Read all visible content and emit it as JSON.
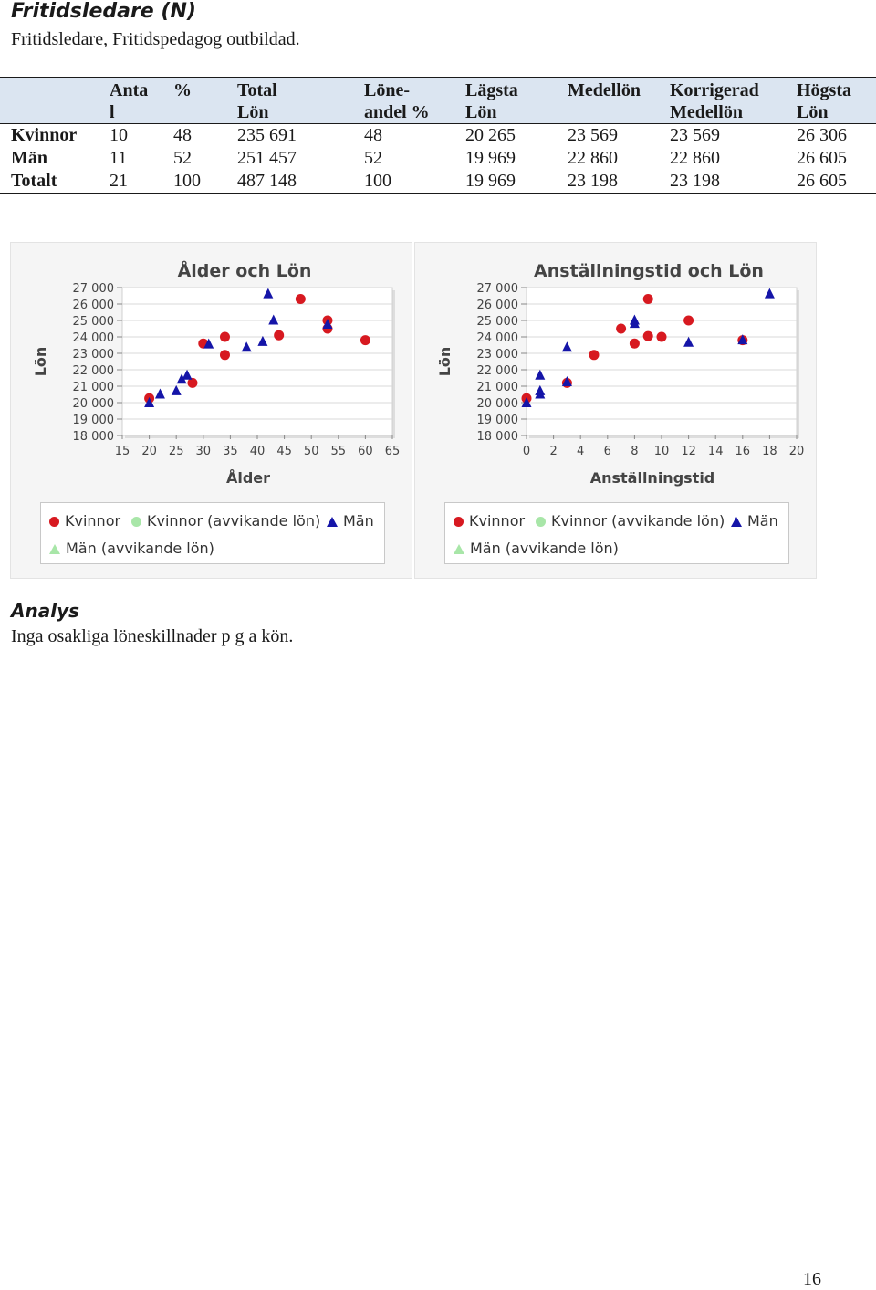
{
  "title": "Fritidsledare (N)",
  "subtitle": "Fritidsledare, Fritidspedagog outbildad.",
  "table": {
    "headers": [
      {
        "l1": "Anta",
        "l2": "l"
      },
      {
        "l1": "%",
        "l2": ""
      },
      {
        "l1": "Total",
        "l2": "Lön"
      },
      {
        "l1": "Löne-",
        "l2": "andel %"
      },
      {
        "l1": "Lägsta",
        "l2": "Lön"
      },
      {
        "l1": "Medellön",
        "l2": ""
      },
      {
        "l1": "Korrigerad",
        "l2": "Medellön"
      },
      {
        "l1": "Högsta",
        "l2": "Lön"
      }
    ],
    "rows": [
      {
        "label": "Kvinnor",
        "cells": [
          "10",
          "48",
          "235 691",
          "48",
          "20 265",
          "23 569",
          "23 569",
          "26 306"
        ]
      },
      {
        "label": "Män",
        "cells": [
          "11",
          "52",
          "251 457",
          "52",
          "19 969",
          "22 860",
          "22 860",
          "26 605"
        ]
      },
      {
        "label": "Totalt",
        "cells": [
          "21",
          "100",
          "487 148",
          "100",
          "19 969",
          "23 198",
          "23 198",
          "26 605"
        ]
      }
    ]
  },
  "colors": {
    "kvinnor": "#d71920",
    "kvinnor_avv": "#a8e6a8",
    "man": "#1515a8",
    "man_avv": "#a8e6a8"
  },
  "legend": {
    "kvinnor": "Kvinnor",
    "kvinnor_avv": "Kvinnor (avvikande lön)",
    "man": "Män",
    "man_avv": "Män (avvikande lön)"
  },
  "chart_data": [
    {
      "type": "scatter",
      "title": "Ålder och Lön",
      "xlabel": "Ålder",
      "ylabel": "Lön",
      "xlim": [
        15,
        65
      ],
      "ylim": [
        18000,
        27000
      ],
      "xticks": [
        "15",
        "20",
        "25",
        "30",
        "35",
        "40",
        "45",
        "50",
        "55",
        "60",
        "65"
      ],
      "yticks": [
        "27 000",
        "26 000",
        "25 000",
        "24 000",
        "23 000",
        "22 000",
        "21 000",
        "20 000",
        "19 000",
        "18 000"
      ],
      "series": [
        {
          "name": "Kvinnor",
          "marker": "circle",
          "points": [
            [
              20,
              20265
            ],
            [
              28,
              21200
            ],
            [
              30,
              23600
            ],
            [
              34,
              24000
            ],
            [
              34,
              22900
            ],
            [
              44,
              24100
            ],
            [
              48,
              26306
            ],
            [
              53,
              25000
            ],
            [
              53,
              24500
            ],
            [
              60,
              23800
            ]
          ]
        },
        {
          "name": "Män",
          "marker": "triangle",
          "points": [
            [
              20,
              19969
            ],
            [
              22,
              20500
            ],
            [
              25,
              20700
            ],
            [
              26,
              21400
            ],
            [
              27,
              21650
            ],
            [
              31,
              23550
            ],
            [
              38,
              23350
            ],
            [
              41,
              23700
            ],
            [
              42,
              26605
            ],
            [
              43,
              25000
            ],
            [
              53,
              24750
            ]
          ]
        }
      ]
    },
    {
      "type": "scatter",
      "title": "Anställningstid och Lön",
      "xlabel": "Anställningstid",
      "ylabel": "Lön",
      "xlim": [
        0,
        20
      ],
      "ylim": [
        18000,
        27000
      ],
      "xticks": [
        "0",
        "2",
        "4",
        "6",
        "8",
        "10",
        "12",
        "14",
        "16",
        "18",
        "20"
      ],
      "yticks": [
        "27 000",
        "26 000",
        "25 000",
        "24 000",
        "23 000",
        "22 000",
        "21 000",
        "20 000",
        "19 000",
        "18 000"
      ],
      "series": [
        {
          "name": "Kvinnor",
          "marker": "circle",
          "points": [
            [
              0,
              20265
            ],
            [
              3,
              21200
            ],
            [
              5,
              22900
            ],
            [
              7,
              24500
            ],
            [
              8,
              23600
            ],
            [
              9,
              26306
            ],
            [
              9,
              24050
            ],
            [
              10,
              24000
            ],
            [
              12,
              25000
            ],
            [
              16,
              23800
            ]
          ]
        },
        {
          "name": "Män",
          "marker": "triangle",
          "points": [
            [
              0,
              19969
            ],
            [
              1,
              20500
            ],
            [
              1,
              20700
            ],
            [
              1,
              21650
            ],
            [
              3,
              21250
            ],
            [
              3,
              23350
            ],
            [
              8,
              25000
            ],
            [
              8,
              24800
            ],
            [
              12,
              23650
            ],
            [
              16,
              23800
            ],
            [
              18,
              26605
            ]
          ]
        }
      ]
    }
  ],
  "analysis_heading": "Analys",
  "analysis_text": "Inga osakliga löneskillnader p g a kön.",
  "page_number": "16"
}
